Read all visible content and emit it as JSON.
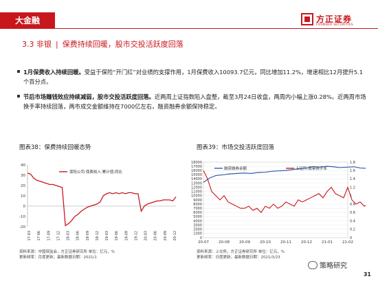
{
  "header": {
    "tab": "大金融",
    "logo_cn": "方正证券",
    "logo_en": "FOUNDER SECURITIES"
  },
  "section": {
    "number": "3.3 非银",
    "sep": "|",
    "title": "保费持续回暖，股市交投活跃度回落"
  },
  "bullets": [
    {
      "lead": "1月保费收入持续回暖。",
      "text": "受益于保险“开门红”对业绩的支撑作用，1月保费收入10093.7亿元，同比增加11.2%，增速相比12月提升5.1个百分点。"
    },
    {
      "lead": "节后市场赚钱效应持续减弱，股市交投活跃度回落。",
      "text": "近两周上证指数陷入盘整，截至3月24日收盘，两周内小幅上涨0.28%。近两周市场换手率持续回落，两市成交金额维持在7000亿左右，融资融券余额保持稳定。"
    }
  ],
  "figures": [
    {
      "title": "图表38：保费持续回暖态势",
      "source_lines": [
        "资料来源：中国保监会，方正证券研究所  单位：亿元，%",
        "更新频率：月度更新；最新数据日期：2021/1"
      ]
    },
    {
      "title": "图表39：市场交投活跃度回落",
      "source_lines": [
        "资料来源：上交所，方正证券研究所  单位：亿元，%",
        "更新频率：日度更新；最新数据日期：2021/3/23"
      ]
    }
  ],
  "watermark": "策略研究",
  "page_number": "31",
  "chart_data": [
    {
      "type": "line",
      "legend": [
        "保险公司:保费收入:累计值:同比"
      ],
      "legend_position": "top",
      "ylim": [
        -20,
        40
      ],
      "yticks": [
        -20,
        -10,
        0,
        10,
        20,
        30,
        40
      ],
      "categories": [
        "17-03",
        "17-06",
        "17-09",
        "17-12",
        "18-03",
        "18-06",
        "18-09",
        "18-12",
        "19-03",
        "19-06",
        "19-09",
        "19-12",
        "20-03",
        "20-06",
        "20-09",
        "20-12"
      ],
      "series": [
        {
          "name": "保险公司:保费收入:累计值:同比",
          "color": "#c8161d",
          "x": [
            0,
            1,
            2,
            3,
            4,
            5,
            6,
            7,
            8,
            9,
            10,
            11,
            12,
            13,
            14,
            15,
            16,
            17,
            18,
            19,
            20,
            21,
            22,
            23,
            24,
            25,
            26,
            27,
            28,
            29,
            30,
            31,
            32,
            33,
            34,
            35,
            36,
            37,
            38,
            39,
            40,
            41,
            42,
            43,
            44,
            45,
            46,
            47
          ],
          "values": [
            32,
            31,
            27,
            25,
            24,
            23,
            22,
            21,
            21,
            20,
            19,
            18,
            -19,
            -17,
            -14,
            -10,
            -8,
            -5,
            -3,
            -1,
            0,
            1,
            2,
            4,
            10,
            12,
            13,
            12,
            13,
            12,
            13,
            12,
            13,
            13,
            12,
            12,
            -5,
            0,
            2,
            3,
            4,
            5,
            5,
            6,
            6,
            6,
            5,
            9
          ]
        }
      ]
    },
    {
      "type": "line",
      "legend": [
        "融资融券余额",
        "上证所:股票换手率"
      ],
      "legend_position": "top",
      "grid": true,
      "categories": [
        "20-07",
        "20-08",
        "20-09",
        "20-10",
        "20-11",
        "20-12",
        "21-01",
        "21-02"
      ],
      "ylim_left": [
        0,
        18000
      ],
      "yticks_left": [
        0,
        1000,
        2000,
        3000,
        4000,
        5000,
        6000,
        7000,
        8000,
        9000,
        10000,
        11000,
        12000,
        13000,
        14000,
        15000,
        16000,
        17000,
        18000
      ],
      "ylim_right": [
        0,
        1.8
      ],
      "yticks_right": [
        0,
        0.2,
        0.4,
        0.6,
        0.8,
        1,
        1.2,
        1.4,
        1.6,
        1.8
      ],
      "series": [
        {
          "name": "融资融券余额",
          "axis": "left",
          "color": "#2f5ea8",
          "x": [
            0,
            0.3,
            0.6,
            1,
            1.3,
            1.6,
            2,
            2.3,
            2.6,
            3,
            3.3,
            3.6,
            4,
            4.3,
            4.6,
            5,
            5.3,
            5.6,
            6,
            6.3,
            6.6,
            7,
            7.3,
            7.6,
            8
          ],
          "values": [
            13200,
            14200,
            14800,
            15000,
            15200,
            15300,
            15400,
            15300,
            15500,
            15600,
            15800,
            15900,
            16000,
            16200,
            16400,
            16600,
            16900,
            16800,
            17000,
            16900,
            16700,
            16800,
            16900,
            16600,
            16500
          ]
        },
        {
          "name": "上证所:股票换手率",
          "axis": "right",
          "color": "#c8161d",
          "x": [
            0,
            0.2,
            0.4,
            0.6,
            0.8,
            1,
            1.2,
            1.4,
            1.6,
            1.8,
            2,
            2.2,
            2.4,
            2.6,
            2.8,
            3,
            3.2,
            3.4,
            3.6,
            3.8,
            4,
            4.2,
            4.4,
            4.6,
            4.8,
            5,
            5.2,
            5.4,
            5.6,
            5.8,
            6,
            6.2,
            6.4,
            6.6,
            6.8,
            7,
            7.2,
            7.4,
            7.6,
            7.8,
            8
          ],
          "values": [
            1.6,
            1.4,
            1.1,
            1.0,
            0.9,
            1.0,
            0.85,
            0.8,
            0.75,
            0.7,
            0.7,
            0.75,
            0.65,
            0.7,
            0.6,
            0.75,
            0.7,
            0.8,
            0.7,
            0.75,
            0.85,
            0.8,
            0.75,
            0.9,
            0.85,
            0.9,
            0.95,
            1.0,
            1.05,
            0.95,
            1.1,
            1.2,
            1.05,
            1.0,
            0.95,
            1.2,
            0.9,
            0.8,
            0.85,
            0.75,
            0.8
          ]
        }
      ]
    }
  ]
}
